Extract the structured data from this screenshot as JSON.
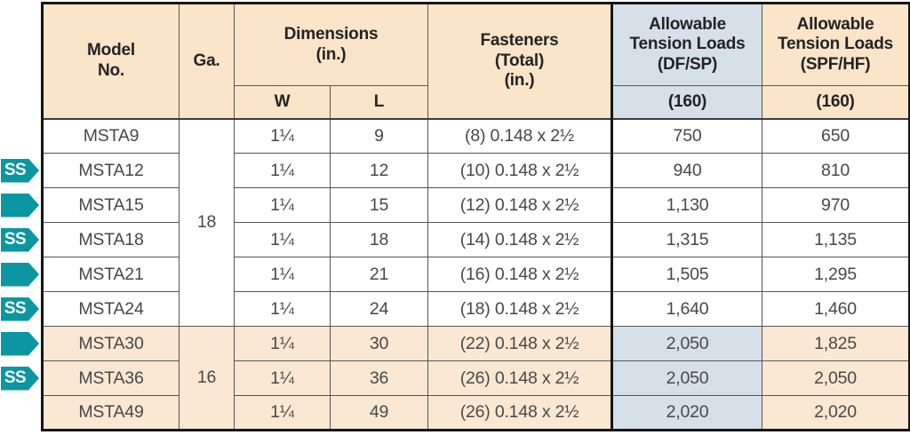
{
  "colors": {
    "header_cream": "#FAE5C8",
    "header_blue": "#D6E0E9",
    "row_cream": "#FAE8D2",
    "badge_teal": "#0C96A2",
    "border_heavy": "#161616",
    "border_light": "#55565A",
    "header_text": "#232325",
    "cell_text": "#48484A"
  },
  "badges": {
    "ss_label": "SS"
  },
  "table": {
    "header": {
      "model": "Model\nNo.",
      "ga": "Ga.",
      "dimensions": "Dimensions\n(in.)",
      "w": "W",
      "l": "L",
      "fasteners": "Fasteners\n(Total)\n(in.)",
      "df_sp": "Allowable\nTension Loads\n(DF/SP)",
      "spf_hf": "Allowable\nTension Loads\n(SPF/HF)",
      "df_rate": "(160)",
      "spf_rate": "(160)"
    },
    "ga_groups": [
      {
        "value": "18",
        "span": 6
      },
      {
        "value": "16",
        "span": 3
      }
    ],
    "rows": [
      {
        "model": "MSTA9",
        "w": "1¼",
        "l": "9",
        "fasteners": "(8) 0.148 x 2½",
        "df_sp": "750",
        "spf_hf": "650",
        "badge": "none",
        "shaded": false
      },
      {
        "model": "MSTA12",
        "w": "1¼",
        "l": "12",
        "fasteners": "(10) 0.148 x 2½",
        "df_sp": "940",
        "spf_hf": "810",
        "badge": "ss",
        "shaded": false
      },
      {
        "model": "MSTA15",
        "w": "1¼",
        "l": "15",
        "fasteners": "(12) 0.148 x 2½",
        "df_sp": "1,130",
        "spf_hf": "970",
        "badge": "plain",
        "shaded": false
      },
      {
        "model": "MSTA18",
        "w": "1¼",
        "l": "18",
        "fasteners": "(14) 0.148 x 2½",
        "df_sp": "1,315",
        "spf_hf": "1,135",
        "badge": "ss",
        "shaded": false
      },
      {
        "model": "MSTA21",
        "w": "1¼",
        "l": "21",
        "fasteners": "(16) 0.148 x 2½",
        "df_sp": "1,505",
        "spf_hf": "1,295",
        "badge": "plain",
        "shaded": false
      },
      {
        "model": "MSTA24",
        "w": "1¼",
        "l": "24",
        "fasteners": "(18) 0.148 x 2½",
        "df_sp": "1,640",
        "spf_hf": "1,460",
        "badge": "ss",
        "shaded": false
      },
      {
        "model": "MSTA30",
        "w": "1¼",
        "l": "30",
        "fasteners": "(22) 0.148 x 2½",
        "df_sp": "2,050",
        "spf_hf": "1,825",
        "badge": "plain",
        "shaded": true
      },
      {
        "model": "MSTA36",
        "w": "1¼",
        "l": "36",
        "fasteners": "(26) 0.148 x 2½",
        "df_sp": "2,050",
        "spf_hf": "2,050",
        "badge": "ss",
        "shaded": true
      },
      {
        "model": "MSTA49",
        "w": "1¼",
        "l": "49",
        "fasteners": "(26) 0.148 x 2½",
        "df_sp": "2,020",
        "spf_hf": "2,020",
        "badge": "none",
        "shaded": true
      }
    ]
  }
}
